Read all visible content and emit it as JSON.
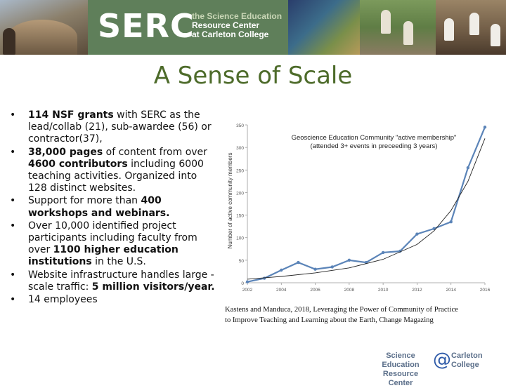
{
  "header": {
    "logo_text": "SERC",
    "logo_sub_1": "the Science Education",
    "logo_sub_2": "Resource Center",
    "logo_sub_3": "at Carleton College"
  },
  "title": "A Sense of Scale",
  "bullets": [
    {
      "bold": "114 NSF grants",
      "rest": " with SERC as the lead/collab (21), sub-awardee (56) or contractor(37),"
    },
    {
      "bold": "38,000 pages",
      "mid": " of content from over ",
      "bold2": "4600 contributors",
      "rest": " including 6000 teaching activities. Organized into 128 distinct websites."
    },
    {
      "pre": "Support for more than ",
      "bold": "400 workshops and webinars."
    },
    {
      "pre": "Over 10,000 identified project participants including faculty from over ",
      "bold": "1100 higher education institutions",
      "rest": " in the U.S."
    },
    {
      "pre": "Website infrastructure handles large -scale traffic: ",
      "bold": "5 million visitors/year."
    },
    {
      "pre": "14 employees"
    }
  ],
  "bullet_char": "•",
  "chart_data": {
    "type": "line",
    "title": "Geoscience Education Community \"active membership\"",
    "subtitle": "(attended 3+ events in preceeding 3 years)",
    "xlabel": "",
    "ylabel": "Number of active community members",
    "xlim": [
      2002,
      2016
    ],
    "ylim": [
      0,
      350
    ],
    "xticks": [
      2002,
      2004,
      2006,
      2008,
      2010,
      2012,
      2014,
      2016
    ],
    "yticks": [
      0,
      50,
      100,
      150,
      200,
      250,
      300,
      350
    ],
    "series": [
      {
        "name": "active membership",
        "color": "#5b84b8",
        "x": [
          2002,
          2003,
          2004,
          2005,
          2006,
          2007,
          2008,
          2009,
          2010,
          2011,
          2012,
          2013,
          2014,
          2015,
          2016
        ],
        "y": [
          2,
          10,
          28,
          45,
          30,
          35,
          50,
          45,
          67,
          70,
          108,
          120,
          135,
          255,
          345
        ]
      },
      {
        "name": "exponential fit",
        "color": "#222222",
        "x": [
          2002,
          2004,
          2006,
          2008,
          2010,
          2012,
          2013,
          2014,
          2015,
          2016
        ],
        "y": [
          8,
          14,
          22,
          33,
          52,
          85,
          115,
          160,
          225,
          320
        ]
      }
    ]
  },
  "citation_1": "Kastens and Manduca, 2018, Leveraging the Power of Community of Practice",
  "citation_2": "to Improve Teaching and Learning about the Earth, Change Magazing",
  "footer": {
    "line1": "Science Education",
    "line2": "Resource Center",
    "at": "@",
    "line3": "Carleton",
    "line4": "College"
  }
}
